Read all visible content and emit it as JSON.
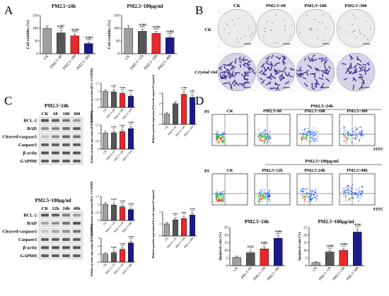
{
  "panel_letters": {
    "A": "A",
    "B": "B",
    "C": "C",
    "D": "D"
  },
  "colors": {
    "ck": "#a0a0a0",
    "dose1": "#555555",
    "dose2": "#e8282b",
    "dose3": "#1a1a8c",
    "bar_edge": "#000000",
    "flow_low": "#1a4fff",
    "flow_mid": "#19c21a",
    "flow_high": "#ff2a2a"
  },
  "panelA": {
    "left_title": "PM2.5~24h",
    "right_title": "PM2.5~180μg/ml",
    "ylabel": "Cell viability (%)"
  },
  "panelB": {
    "col_labels": [
      "CK",
      "PM2.5~60",
      "PM2.5~180",
      "PM2.5~300"
    ],
    "row_labels": [
      "CK",
      "Crystal violet"
    ]
  },
  "panelC": {
    "blot1_title": "PM2.5~24h",
    "blot1_lanes": [
      "CK",
      "60",
      "180",
      "300"
    ],
    "blot2_title": "PM2.5~180μg/ml",
    "blot2_lanes": [
      "CK",
      "12h",
      "24h",
      "48h"
    ],
    "bands": [
      "BCL-2",
      "BAD",
      "Cleaved-caspase3",
      "Caspase3",
      "β-actin",
      "GAPDH"
    ],
    "ylabel_bcl2": "Relative protein expression (BCL-2/GAPDH)",
    "ylabel_bad": "Relative protein expression (BAD/GAPDH)",
    "ylabel_casp": "Relative protein expression (Cleaved-caspase3/Caspase3)"
  },
  "panelD": {
    "top_header": "PM2.5~24h",
    "top_labels": [
      "CK",
      "PM2.5~60",
      "PM2.5~180",
      "PM2.5~300"
    ],
    "bottom_header": "PM2.5~180μg/ml",
    "bottom_labels": [
      "CK",
      "PM2.5~12h",
      "PM2.5~24h",
      "PM2.5~48h"
    ],
    "axis_y": "PI",
    "axis_x": "FITC",
    "ylabel": "Apoptosis rate (%)",
    "left_title": "PM2.5~24h",
    "right_title": "PM2.5~180μg/ml"
  },
  "chart_data": [
    {
      "id": "A1",
      "type": "bar",
      "title": "PM2.5~24h",
      "ylabel": "Cell viability (%)",
      "categories": [
        "CK",
        "PM2.5~60",
        "PM2.5~180",
        "PM2.5~300"
      ],
      "values": [
        100,
        82,
        70,
        40
      ],
      "ylim": [
        0,
        150
      ],
      "yticks": [
        0,
        50,
        100,
        150
      ],
      "annotations": [
        "",
        "0.007",
        "<0.001",
        "<0.001"
      ],
      "stars": [
        "",
        "**",
        "***",
        "***"
      ]
    },
    {
      "id": "A2",
      "type": "bar",
      "title": "PM2.5~180μg/ml",
      "ylabel": "Cell viability (%)",
      "categories": [
        "CK",
        "PM2.5~12h",
        "PM2.5~24h",
        "PM2.5~48h"
      ],
      "values": [
        100,
        88,
        80,
        63
      ],
      "ylim": [
        0,
        150
      ],
      "yticks": [
        0,
        50,
        100,
        150
      ],
      "annotations": [
        "",
        "<0.001",
        "<0.001",
        "<0.001"
      ],
      "stars": [
        "",
        "***",
        "***",
        "***"
      ]
    },
    {
      "id": "C1",
      "type": "bar",
      "ylabel": "Relative protein expression (BCL-2/GAPDH)",
      "categories": [
        "CK",
        "PM2.5~60",
        "PM2.5~180",
        "PM2.5~300"
      ],
      "values": [
        1.0,
        0.97,
        0.87,
        0.7
      ],
      "ylim": [
        0,
        1.5
      ],
      "yticks": [
        0.0,
        0.5,
        1.0,
        1.5
      ],
      "annotations": [
        "",
        "0.001",
        "<0.001",
        "0.002"
      ],
      "stars": [
        "",
        "**",
        "***",
        "**"
      ]
    },
    {
      "id": "C2",
      "type": "bar",
      "ylabel": "Relative protein expression (BAD/GAPDH)",
      "categories": [
        "CK",
        "PM2.5~60",
        "PM2.5~180",
        "PM2.5~300"
      ],
      "values": [
        1.0,
        1.02,
        1.1,
        1.28
      ],
      "ylim": [
        0,
        1.5
      ],
      "yticks": [
        0.0,
        0.5,
        1.0,
        1.5
      ],
      "annotations": [
        "",
        "0.004",
        "0.002",
        "<0.001"
      ],
      "stars": [
        "",
        "**",
        "**",
        "***"
      ]
    },
    {
      "id": "C3",
      "type": "bar",
      "ylabel": "Relative protein expression (Cleaved-caspase3/Caspase3)",
      "categories": [
        "CK",
        "PM2.5~60",
        "PM2.5~180",
        "PM2.5~300"
      ],
      "values": [
        1.0,
        2.0,
        2.9,
        2.6
      ],
      "ylim": [
        0,
        3
      ],
      "yticks": [
        0,
        1,
        2,
        3
      ],
      "annotations": [
        "",
        "",
        "<0.001",
        "0.001"
      ],
      "stars": [
        "",
        "",
        "***",
        "***"
      ]
    },
    {
      "id": "C4",
      "type": "bar",
      "ylabel": "Relative protein expression (BCL-2/GAPDH)",
      "categories": [
        "CK",
        "PM2.5~12h",
        "PM2.5~24h",
        "PM2.5~48h"
      ],
      "values": [
        1.0,
        0.96,
        0.85,
        0.68
      ],
      "ylim": [
        0,
        1.5
      ],
      "yticks": [
        0.0,
        0.5,
        1.0,
        1.5
      ],
      "annotations": [
        "",
        "0.016",
        "<0.001",
        "<0.001"
      ],
      "stars": [
        "",
        "*",
        "***",
        "***"
      ]
    },
    {
      "id": "C5",
      "type": "bar",
      "ylabel": "Relative protein expression (Cleaved-caspase3/Caspase3)",
      "categories": [
        "CK",
        "PM2.5~12h",
        "PM2.5~24h",
        "PM2.5~48h"
      ],
      "values": [
        1.0,
        1.35,
        1.45,
        1.75
      ],
      "ylim": [
        0,
        2
      ],
      "yticks": [
        0,
        1,
        2
      ],
      "annotations": [
        "",
        "0.002",
        "0.001",
        "<0.001"
      ],
      "stars": [
        "",
        "**",
        "**",
        "***"
      ]
    },
    {
      "id": "C6",
      "type": "bar",
      "ylabel": "Relative protein expression (BAD/GAPDH)",
      "categories": [
        "CK",
        "PM2.5~12h",
        "PM2.5~24h",
        "PM2.5~48h"
      ],
      "values": [
        1.0,
        1.17,
        1.6,
        2.4
      ],
      "ylim": [
        0,
        3
      ],
      "yticks": [
        0,
        1,
        2,
        3
      ],
      "annotations": [
        "",
        "0.005",
        "<0.001",
        "<0.001"
      ],
      "stars": [
        "",
        "**",
        "***",
        "***"
      ]
    },
    {
      "id": "D1",
      "type": "bar",
      "title": "PM2.5~24h",
      "ylabel": "Apoptosis rate (%)",
      "categories": [
        "CK",
        "PM2.5~60",
        "PM2.5~180",
        "PM2.5~300"
      ],
      "values": [
        5.5,
        8.5,
        11,
        18
      ],
      "ylim": [
        0,
        25
      ],
      "yticks": [
        0,
        5,
        10,
        15,
        20,
        25
      ],
      "annotations": [
        "",
        "0.022",
        "0.002",
        "<0.001"
      ],
      "stars": [
        "",
        "*",
        "**",
        "***"
      ]
    },
    {
      "id": "D2",
      "type": "bar",
      "title": "PM2.5~180μg/ml",
      "ylabel": "Apoptosis rate (%)",
      "categories": [
        "CK",
        "PM2.5~12h",
        "PM2.5~24h",
        "PM2.5~48h"
      ],
      "values": [
        2,
        9,
        10,
        22
      ],
      "ylim": [
        0,
        25
      ],
      "yticks": [
        0,
        5,
        10,
        15,
        20,
        25
      ],
      "annotations": [
        "",
        "<0.001",
        "<0.001",
        "<0.001"
      ],
      "stars": [
        "",
        "***",
        "***",
        "***"
      ]
    }
  ]
}
